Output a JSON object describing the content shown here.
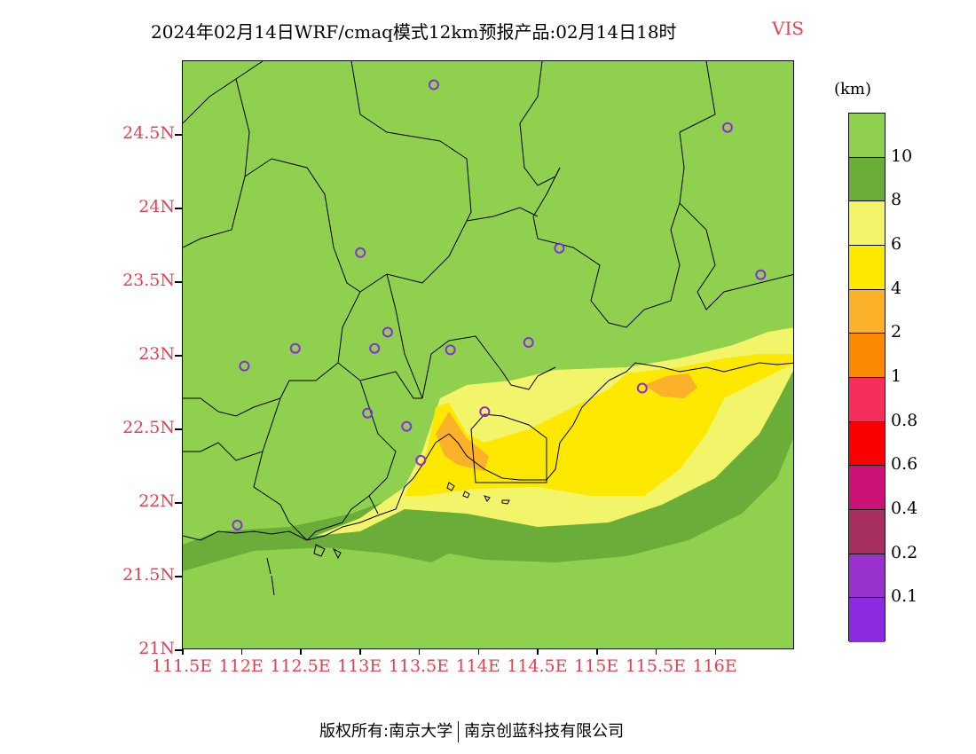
{
  "title": {
    "main": "2024年02月14日WRF/cmaq模式12km预报产品:02月14日18时",
    "variable": "VIS"
  },
  "map": {
    "lat_ticks": [
      "24.5N",
      "24N",
      "23.5N",
      "23N",
      "22.5N",
      "22N",
      "21.5N",
      "21N"
    ],
    "lon_ticks": [
      "111.5E",
      "112E",
      "112.5E",
      "113E",
      "113.5E",
      "114E",
      "114.5E",
      "115E",
      "115.5E",
      "116E"
    ],
    "lat_range": [
      21,
      25
    ],
    "lon_range": [
      111.5,
      116.67
    ],
    "station_markers": [
      {
        "lon": 113.62,
        "lat": 24.84
      },
      {
        "lon": 116.1,
        "lat": 24.55
      },
      {
        "lon": 113.0,
        "lat": 23.7
      },
      {
        "lon": 114.68,
        "lat": 23.73
      },
      {
        "lon": 116.38,
        "lat": 23.55
      },
      {
        "lon": 113.23,
        "lat": 23.16
      },
      {
        "lon": 112.45,
        "lat": 23.05
      },
      {
        "lon": 113.12,
        "lat": 23.05
      },
      {
        "lon": 113.76,
        "lat": 23.04
      },
      {
        "lon": 114.42,
        "lat": 23.09
      },
      {
        "lon": 112.02,
        "lat": 22.93
      },
      {
        "lon": 115.38,
        "lat": 22.78
      },
      {
        "lon": 113.06,
        "lat": 22.61
      },
      {
        "lon": 114.05,
        "lat": 22.62
      },
      {
        "lon": 113.39,
        "lat": 22.52
      },
      {
        "lon": 113.51,
        "lat": 22.29
      },
      {
        "lon": 111.96,
        "lat": 21.85
      }
    ]
  },
  "legend": {
    "unit": "(km)",
    "labels": [
      "10",
      "8",
      "6",
      "4",
      "2",
      "1",
      "0.8",
      "0.6",
      "0.4",
      "0.2",
      "0.1"
    ],
    "colors": [
      "#8fd14f",
      "#6aad39",
      "#f2f46a",
      "#fde800",
      "#fbb12a",
      "#fb8a00",
      "#f52e5e",
      "#fb0000",
      "#cc1179",
      "#a83060",
      "#9932cc",
      "#8a2be2"
    ]
  },
  "footer": {
    "left": "版权所有:南京大学",
    "right": "南京创蓝科技有限公司"
  }
}
